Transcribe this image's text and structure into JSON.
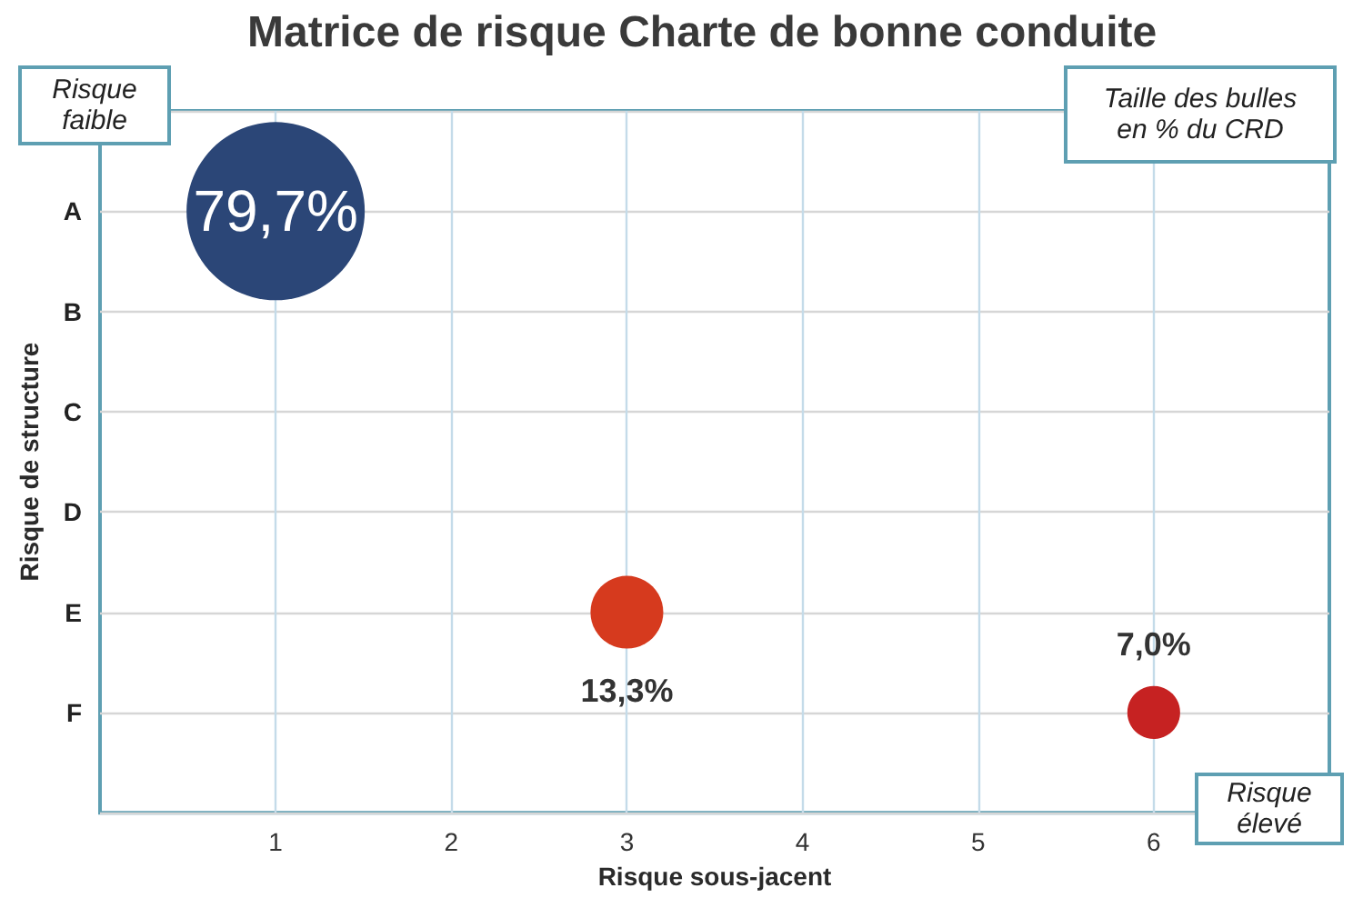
{
  "chart_data": {
    "type": "bubble",
    "orientation": "horizontal",
    "title": "Matrice de risque Charte de bonne conduite",
    "xlabel": "Risque sous-jacent",
    "ylabel": "Risque de structure",
    "annotations": [
      "Risque faible",
      "Taille des bulles en % du CRD",
      "Risque élevé"
    ],
    "categories": [
      "A",
      "B",
      "C",
      "D",
      "E",
      "F"
    ],
    "values": [
      1,
      null,
      null,
      null,
      3,
      6
    ],
    "sizes": [
      79.7,
      null,
      null,
      null,
      13.3,
      7.0
    ],
    "colors": [
      "#2b4677",
      null,
      null,
      null,
      "#d63a1e",
      "#c62222"
    ],
    "value_labels": [
      "79,7%",
      null,
      null,
      null,
      "13,3%",
      "7,0%"
    ],
    "xlim": [
      0,
      7
    ],
    "xticks": [
      1,
      2,
      3,
      4,
      5,
      6
    ],
    "grid": true,
    "marker": "circle"
  }
}
